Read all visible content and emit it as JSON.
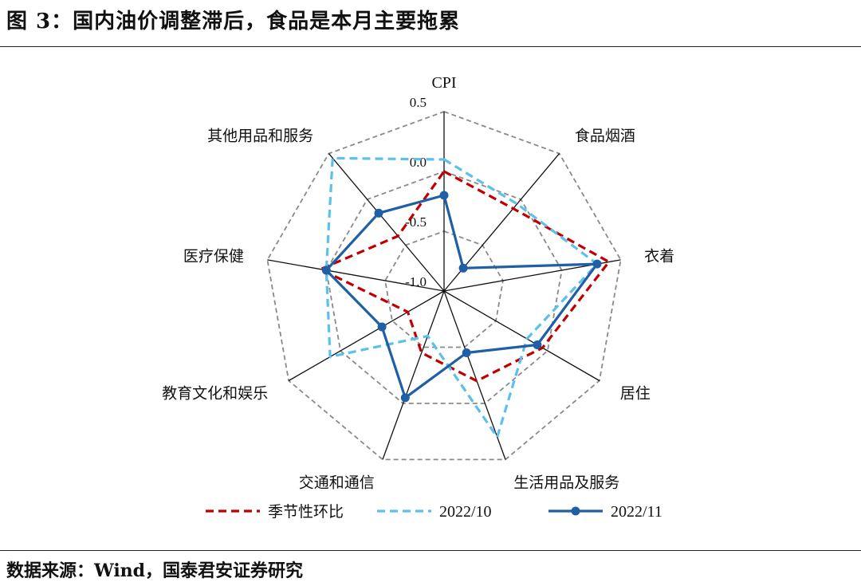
{
  "figure_title": "图 3：国内油价调整滞后，食品是本月主要拖累",
  "source_text": "数据来源：Wind，国泰君安证券研究",
  "chart_data": {
    "type": "radar",
    "axes": [
      "CPI",
      "食品烟酒",
      "衣着",
      "居住",
      "生活用品及服务",
      "交通和通信",
      "教育文化和娱乐",
      "医疗保健",
      "其他用品和服务"
    ],
    "range": [
      -1.0,
      0.5
    ],
    "ticks": [
      0.5,
      0.0,
      -0.5,
      -1.0
    ],
    "tick_labels": [
      "0.5",
      "0.0",
      "-0.5",
      "-1.0"
    ],
    "grid": true,
    "legend_position": "bottom",
    "series": [
      {
        "name": "季节性环比",
        "color": "#C00000",
        "style": "dashed",
        "marker": false,
        "values": [
          0.0,
          -0.1,
          0.4,
          -0.05,
          -0.2,
          -0.45,
          -0.65,
          0.05,
          -0.4
        ]
      },
      {
        "name": "2022/10",
        "color": "#5BC0EB",
        "style": "dashed",
        "marker": false,
        "values": [
          0.1,
          -0.05,
          0.3,
          -0.2,
          0.3,
          -0.6,
          0.1,
          0.0,
          0.45
        ]
      },
      {
        "name": "2022/11",
        "color": "#1F5FA6",
        "style": "solid",
        "marker": true,
        "values": [
          -0.2,
          -0.75,
          0.3,
          -0.1,
          -0.45,
          -0.05,
          -0.4,
          0.0,
          -0.15
        ]
      }
    ]
  }
}
